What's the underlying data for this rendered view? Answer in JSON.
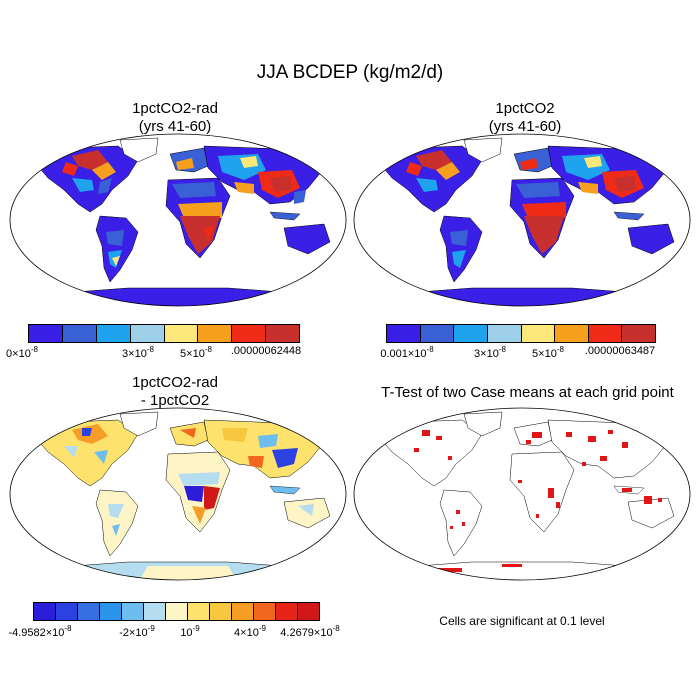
{
  "title": "JJA BCDEP (kg/m2/d)",
  "panels": [
    {
      "title_line1": "1pctCO2-rad",
      "title_line2": "(yrs 41-60)",
      "colorbar": {
        "colors": [
          "#3a1fe6",
          "#3a60d6",
          "#1fa3ef",
          "#9fd0e9",
          "#fbe77a",
          "#f6a01d",
          "#ef2b18",
          "#c7302c"
        ],
        "ticks": [
          {
            "base": "0×10",
            "exp": "-8"
          },
          {
            "base": "3×10",
            "exp": "-8"
          },
          {
            "base": "5×10",
            "exp": "-8"
          },
          {
            "base": ".00000062448",
            "exp": ""
          }
        ]
      }
    },
    {
      "title_line1": "1pctCO2",
      "title_line2": "(yrs 41-60)",
      "colorbar": {
        "colors": [
          "#3a1fe6",
          "#3a60d6",
          "#1fa3ef",
          "#9fd0e9",
          "#fbe77a",
          "#f6a01d",
          "#ef2b18",
          "#c7302c"
        ],
        "ticks": [
          {
            "base": "0.001×10",
            "exp": "-8"
          },
          {
            "base": "3×10",
            "exp": "-8"
          },
          {
            "base": "5×10",
            "exp": "-8"
          },
          {
            "base": ".00000063487",
            "exp": ""
          }
        ]
      }
    },
    {
      "title_line1": "1pctCO2-rad",
      "title_line2": "- 1pctCO2",
      "colorbar": {
        "colors": [
          "#2c1dd9",
          "#2b42e0",
          "#3470e0",
          "#2b95ea",
          "#6dbdf0",
          "#b6dcef",
          "#fdf5c6",
          "#fde36e",
          "#f8c740",
          "#f59d25",
          "#f2661d",
          "#e7241a",
          "#d01818"
        ],
        "ticks": [
          {
            "base": "-4.9582×10",
            "exp": "-8"
          },
          {
            "base": "-2×10",
            "exp": "-9"
          },
          {
            "base": "10",
            "exp": "-9"
          },
          {
            "base": "4×10",
            "exp": "-9"
          },
          {
            "base": "4.2679×10",
            "exp": "-8"
          }
        ]
      }
    },
    {
      "title_line1": "T-Test of two Case means at each grid point",
      "note": "Cells are significant at 0.1 level"
    }
  ]
}
